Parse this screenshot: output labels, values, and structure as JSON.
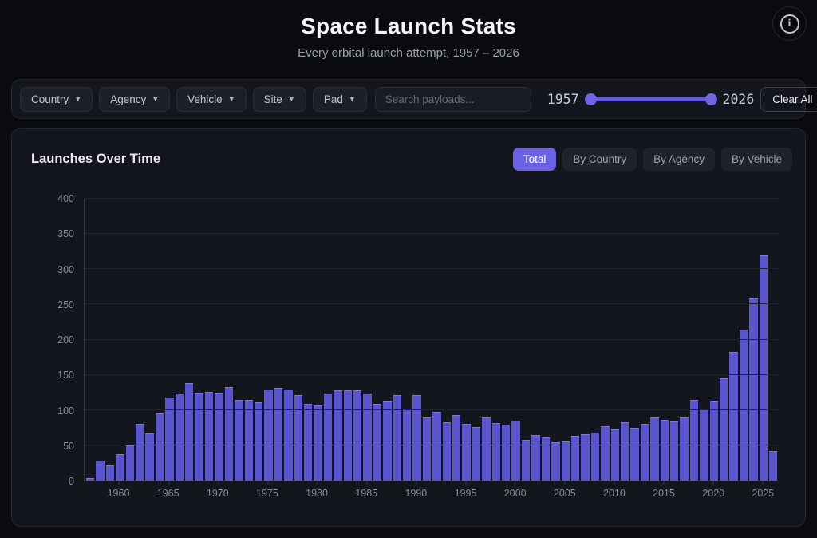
{
  "header": {
    "title": "Space Launch Stats",
    "subtitle": "Every orbital launch attempt, 1957 – 2026",
    "info_icon_glyph": "i"
  },
  "filters": {
    "dropdown_arrow": "▼",
    "dropdowns": [
      {
        "label": "Country"
      },
      {
        "label": "Agency"
      },
      {
        "label": "Vehicle"
      },
      {
        "label": "Site"
      },
      {
        "label": "Pad"
      }
    ],
    "search_placeholder": "Search payloads...",
    "year_range": {
      "min": "1957",
      "max": "2026"
    },
    "clear_button": "Clear All"
  },
  "panel": {
    "title": "Launches Over Time",
    "tabs": [
      {
        "label": "Total",
        "active": true
      },
      {
        "label": "By Country",
        "active": false
      },
      {
        "label": "By Agency",
        "active": false
      },
      {
        "label": "By Vehicle",
        "active": false
      }
    ]
  },
  "colors": {
    "accent": "#6a61e4",
    "bar": "#5a55cf",
    "slider": "#6f65e6",
    "panel_bg": "#14161d",
    "page_bg": "#0a0b0e"
  },
  "chart_data": {
    "type": "bar",
    "title": "Launches Over Time",
    "xlabel": "",
    "ylabel": "",
    "ylim": [
      0,
      400
    ],
    "yticks": [
      0,
      50,
      100,
      150,
      200,
      250,
      300,
      350,
      400
    ],
    "xticks": [
      1960,
      1965,
      1970,
      1975,
      1980,
      1985,
      1990,
      1995,
      2000,
      2005,
      2010,
      2015,
      2020,
      2025
    ],
    "grid": true,
    "legend": "none",
    "categories": [
      1957,
      1958,
      1959,
      1960,
      1961,
      1962,
      1963,
      1964,
      1965,
      1966,
      1967,
      1968,
      1969,
      1970,
      1971,
      1972,
      1973,
      1974,
      1975,
      1976,
      1977,
      1978,
      1979,
      1980,
      1981,
      1982,
      1983,
      1984,
      1985,
      1986,
      1987,
      1988,
      1989,
      1990,
      1991,
      1992,
      1993,
      1994,
      1995,
      1996,
      1997,
      1998,
      1999,
      2000,
      2001,
      2002,
      2003,
      2004,
      2005,
      2006,
      2007,
      2008,
      2009,
      2010,
      2011,
      2012,
      2013,
      2014,
      2015,
      2016,
      2017,
      2018,
      2019,
      2020,
      2021,
      2022,
      2023,
      2024,
      2025,
      2026
    ],
    "values": [
      3,
      28,
      22,
      37,
      50,
      80,
      67,
      95,
      118,
      124,
      138,
      125,
      126,
      125,
      133,
      114,
      115,
      111,
      129,
      131,
      129,
      121,
      109,
      106,
      124,
      128,
      128,
      128,
      123,
      109,
      113,
      121,
      102,
      121,
      90,
      97,
      83,
      93,
      80,
      76,
      89,
      82,
      79,
      85,
      58,
      65,
      61,
      54,
      55,
      63,
      66,
      68,
      77,
      72,
      83,
      75,
      81,
      90,
      86,
      84,
      89,
      114,
      101,
      113,
      145,
      182,
      214,
      260,
      320,
      42
    ]
  }
}
